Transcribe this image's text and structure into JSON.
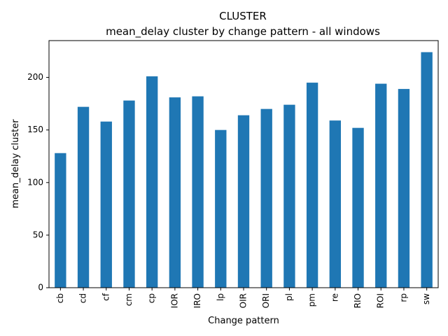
{
  "chart_data": {
    "type": "bar",
    "title": "CLUSTER",
    "subtitle": "mean_delay cluster by change pattern - all windows",
    "xlabel": "Change pattern",
    "ylabel": "mean_delay cluster",
    "categories": [
      "cb",
      "cd",
      "cf",
      "cm",
      "cp",
      "IOR",
      "IRO",
      "lp",
      "OIR",
      "ORI",
      "pl",
      "pm",
      "re",
      "RIO",
      "ROI",
      "rp",
      "sw"
    ],
    "values": [
      128,
      172,
      158,
      178,
      201,
      181,
      182,
      150,
      164,
      170,
      174,
      195,
      159,
      152,
      194,
      189,
      224
    ],
    "ylim": [
      0,
      235
    ],
    "yticks": [
      0,
      50,
      100,
      150,
      200
    ],
    "bar_color": "#1f77b4",
    "grid": false,
    "legend": "none"
  }
}
